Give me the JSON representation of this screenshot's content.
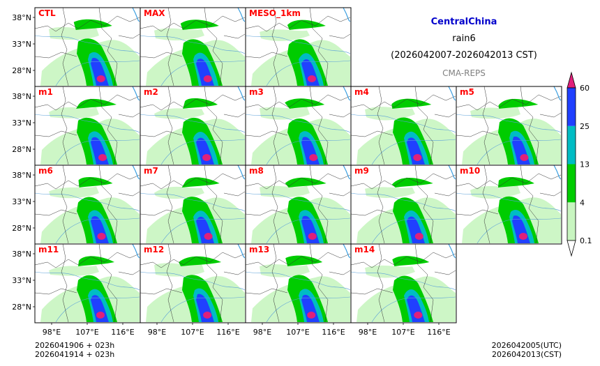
{
  "header": {
    "region": "CentralChina",
    "variable": "rain6",
    "period": "(2026042007-2026042013 CST)",
    "source": "CMA-REPS"
  },
  "panels": [
    {
      "label": "CTL",
      "row": 0,
      "col": 0
    },
    {
      "label": "MAX",
      "row": 0,
      "col": 1
    },
    {
      "label": "MESO_1km",
      "row": 0,
      "col": 2
    },
    {
      "label": "m1",
      "row": 1,
      "col": 0
    },
    {
      "label": "m2",
      "row": 1,
      "col": 1
    },
    {
      "label": "m3",
      "row": 1,
      "col": 2
    },
    {
      "label": "m4",
      "row": 1,
      "col": 3
    },
    {
      "label": "m5",
      "row": 1,
      "col": 4
    },
    {
      "label": "m6",
      "row": 2,
      "col": 0
    },
    {
      "label": "m7",
      "row": 2,
      "col": 1
    },
    {
      "label": "m8",
      "row": 2,
      "col": 2
    },
    {
      "label": "m9",
      "row": 2,
      "col": 3
    },
    {
      "label": "m10",
      "row": 2,
      "col": 4
    },
    {
      "label": "m11",
      "row": 3,
      "col": 0
    },
    {
      "label": "m12",
      "row": 3,
      "col": 1
    },
    {
      "label": "m13",
      "row": 3,
      "col": 2
    },
    {
      "label": "m14",
      "row": 3,
      "col": 3
    }
  ],
  "lat_ticks": [
    "38°N",
    "33°N",
    "28°N"
  ],
  "lon_ticks": [
    "98°E",
    "107°E",
    "116°E"
  ],
  "colorbar": {
    "levels": [
      "0.1",
      "4",
      "13",
      "25",
      "60"
    ],
    "colors": [
      "#c8f5c0",
      "#00cc00",
      "#00bcc4",
      "#2040ff",
      "#e0207a"
    ],
    "under_color": "#ffffff",
    "over_color": "#e0207a"
  },
  "colors": {
    "boundary": "#333333",
    "river": "#5aa0d8",
    "sea": "#3c9fe0"
  },
  "footer": {
    "init_line1": "2026041906  +  023h",
    "init_line2": "2026041914  +  023h",
    "valid_utc": "2026042005(UTC)",
    "valid_cst": "2026042013(CST)"
  }
}
